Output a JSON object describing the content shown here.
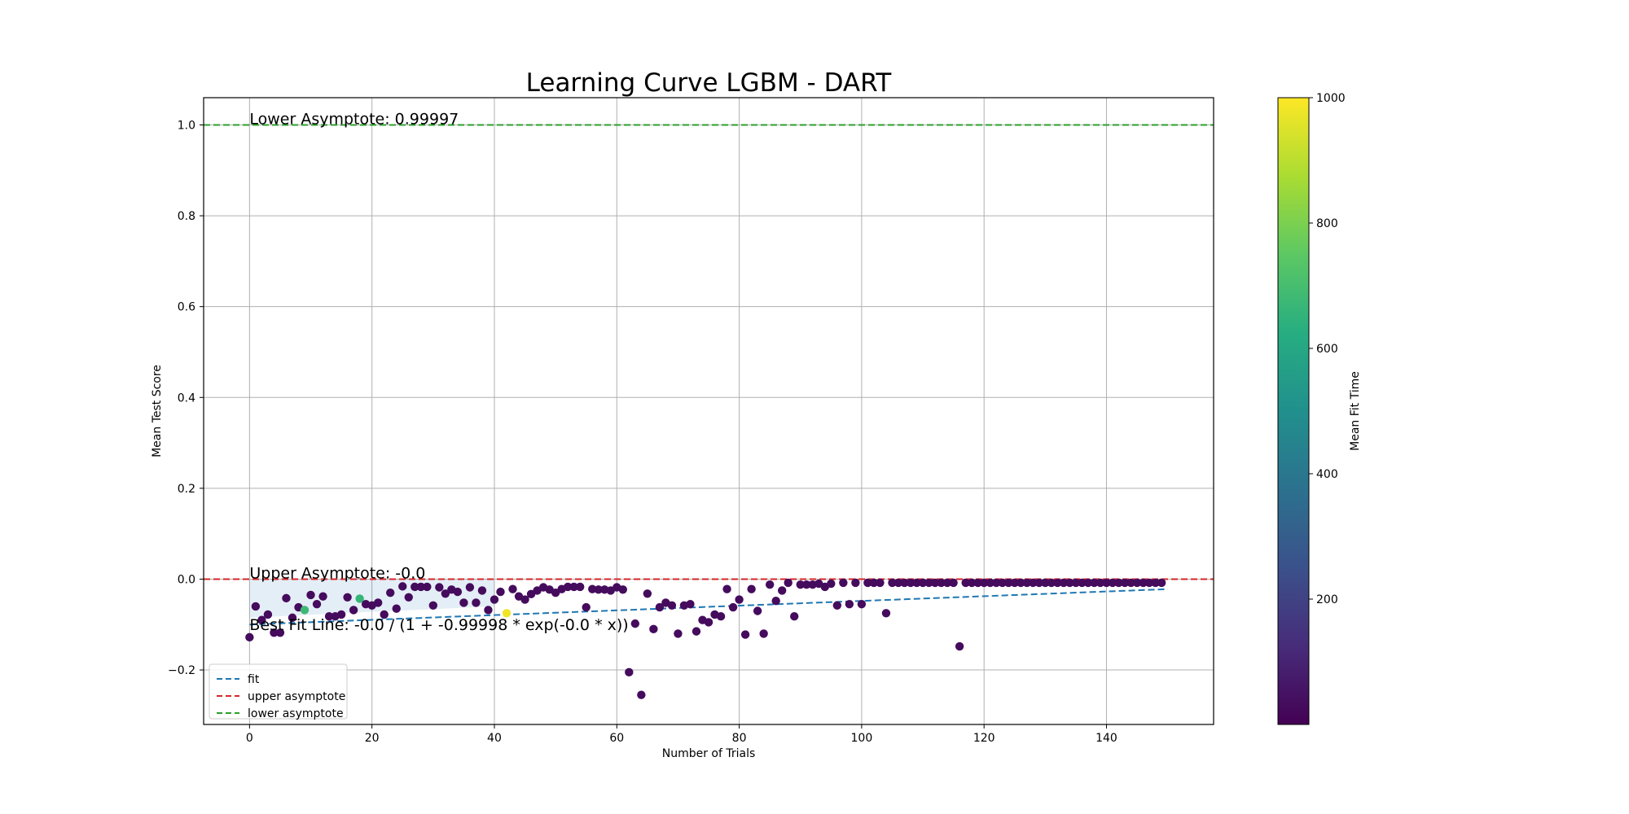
{
  "chart_data": {
    "type": "scatter",
    "title": "Learning Curve LGBM - DART",
    "xlabel": "Number of Trials",
    "ylabel": "Mean Test Score",
    "xlim": [
      -7.5,
      157.5
    ],
    "ylim": [
      -0.32,
      1.06
    ],
    "x_ticks": [
      0,
      20,
      40,
      60,
      80,
      100,
      120,
      140
    ],
    "y_ticks": [
      -0.2,
      0.0,
      0.2,
      0.4,
      0.6,
      0.8,
      1.0
    ],
    "x_tick_labels": [
      "0",
      "20",
      "40",
      "60",
      "80",
      "100",
      "120",
      "140"
    ],
    "y_tick_labels": [
      "−0.2",
      "0.0",
      "0.2",
      "0.4",
      "0.6",
      "0.8",
      "1.0"
    ],
    "grid": true,
    "annotations": {
      "lower_asymptote": "Lower Asymptote: 0.99997",
      "upper_asymptote": "Upper Asymptote: -0.0",
      "best_fit": "Best Fit Line: -0.0 / (1 + -0.99998 * exp(-0.0 * x))"
    },
    "legend": {
      "placement": "lower-left",
      "entries": [
        {
          "label": "fit",
          "color": "#1f77b4"
        },
        {
          "label": "upper asymptote",
          "color": "#d62728"
        },
        {
          "label": "lower asymptote",
          "color": "#2ca02c"
        }
      ]
    },
    "colorbar": {
      "label": "Mean Fit Time",
      "min": 0,
      "max": 1000,
      "ticks": [
        200,
        400,
        600,
        800,
        1000
      ],
      "tick_labels": [
        "200",
        "400",
        "600",
        "800",
        "1000"
      ],
      "colormap": [
        "#440154",
        "#472c7a",
        "#3b518b",
        "#2c718e",
        "#21908d",
        "#27ad81",
        "#5cc863",
        "#aadc32",
        "#fde725"
      ]
    },
    "reference_lines": {
      "upper_asymptote_y": 0.0,
      "lower_asymptote_y": 1.0,
      "upper_color": "#d62728",
      "lower_color": "#2ca02c"
    },
    "fit": {
      "x": [
        0,
        150
      ],
      "y": [
        -0.1,
        -0.022
      ],
      "color": "#1f77b4"
    },
    "band": {
      "x": [
        0,
        20,
        40
      ],
      "upper": [
        0.0,
        0.0,
        0.0
      ],
      "lower": [
        -0.085,
        -0.072,
        -0.06
      ],
      "color": "#1f77b4"
    },
    "points": {
      "x": [
        0,
        1,
        2,
        3,
        4,
        5,
        6,
        7,
        8,
        9,
        10,
        11,
        12,
        13,
        14,
        15,
        16,
        17,
        18,
        19,
        20,
        21,
        22,
        23,
        24,
        25,
        26,
        27,
        28,
        29,
        30,
        31,
        32,
        33,
        34,
        35,
        36,
        37,
        38,
        39,
        40,
        41,
        42,
        43,
        44,
        45,
        46,
        47,
        48,
        49,
        50,
        51,
        52,
        53,
        54,
        55,
        56,
        57,
        58,
        59,
        60,
        61,
        62,
        63,
        64,
        65,
        66,
        67,
        68,
        69,
        70,
        71,
        72,
        73,
        74,
        75,
        76,
        77,
        78,
        79,
        80,
        81,
        82,
        83,
        84,
        85,
        86,
        87,
        88,
        89,
        90,
        91,
        92,
        93,
        94,
        95,
        96,
        97,
        98,
        99,
        100,
        101,
        102,
        103,
        104,
        105,
        106,
        107,
        108,
        109,
        110,
        111,
        112,
        113,
        114,
        115,
        116,
        117,
        118,
        119,
        120,
        121,
        122,
        123,
        124,
        125,
        126,
        127,
        128,
        129,
        130,
        131,
        132,
        133,
        134,
        135,
        136,
        137,
        138,
        139,
        140,
        141,
        142,
        143,
        144,
        145,
        146,
        147,
        148,
        149
      ],
      "y": [
        -0.128,
        -0.06,
        -0.09,
        -0.078,
        -0.118,
        -0.118,
        -0.042,
        -0.085,
        -0.062,
        -0.068,
        -0.035,
        -0.055,
        -0.038,
        -0.082,
        -0.082,
        -0.078,
        -0.04,
        -0.068,
        -0.043,
        -0.055,
        -0.058,
        -0.052,
        -0.078,
        -0.03,
        -0.065,
        -0.016,
        -0.04,
        -0.017,
        -0.017,
        -0.017,
        -0.058,
        -0.018,
        -0.032,
        -0.023,
        -0.028,
        -0.052,
        -0.018,
        -0.052,
        -0.025,
        -0.068,
        -0.045,
        -0.028,
        -0.075,
        -0.022,
        -0.038,
        -0.045,
        -0.033,
        -0.025,
        -0.018,
        -0.023,
        -0.03,
        -0.022,
        -0.017,
        -0.017,
        -0.017,
        -0.062,
        -0.022,
        -0.023,
        -0.023,
        -0.025,
        -0.018,
        -0.023,
        -0.205,
        -0.098,
        -0.255,
        -0.032,
        -0.11,
        -0.062,
        -0.052,
        -0.058,
        -0.12,
        -0.058,
        -0.055,
        -0.115,
        -0.09,
        -0.095,
        -0.078,
        -0.082,
        -0.022,
        -0.062,
        -0.045,
        -0.122,
        -0.022,
        -0.07,
        -0.12,
        -0.012,
        -0.048,
        -0.025,
        -0.008,
        -0.082,
        -0.012,
        -0.012,
        -0.012,
        -0.01,
        -0.017,
        -0.01,
        -0.058,
        -0.008,
        -0.055,
        -0.008,
        -0.055,
        -0.008,
        -0.008,
        -0.008,
        -0.075,
        -0.008,
        -0.008,
        -0.008,
        -0.008,
        -0.008,
        -0.008,
        -0.008,
        -0.008,
        -0.008,
        -0.008,
        -0.008,
        -0.148,
        -0.008,
        -0.008,
        -0.008,
        -0.008,
        -0.008,
        -0.008,
        -0.008,
        -0.008,
        -0.008,
        -0.008,
        -0.008,
        -0.008,
        -0.008,
        -0.008,
        -0.008,
        -0.008,
        -0.008,
        -0.008,
        -0.008,
        -0.008,
        -0.008,
        -0.008,
        -0.008,
        -0.008,
        -0.008,
        -0.008,
        -0.008,
        -0.008,
        -0.008,
        -0.008,
        -0.008,
        -0.008,
        -0.008
      ],
      "fit_time": [
        30,
        30,
        30,
        30,
        30,
        30,
        30,
        30,
        30,
        680,
        30,
        30,
        30,
        30,
        30,
        30,
        30,
        30,
        660,
        30,
        30,
        30,
        30,
        30,
        30,
        30,
        30,
        30,
        30,
        30,
        30,
        30,
        30,
        30,
        30,
        30,
        30,
        30,
        30,
        30,
        30,
        30,
        980,
        30,
        30,
        30,
        30,
        30,
        30,
        30,
        30,
        30,
        30,
        30,
        30,
        30,
        30,
        30,
        30,
        30,
        30,
        30,
        30,
        30,
        30,
        30,
        30,
        30,
        30,
        30,
        30,
        30,
        30,
        30,
        30,
        30,
        30,
        30,
        30,
        30,
        30,
        30,
        30,
        30,
        30,
        30,
        30,
        30,
        30,
        30,
        30,
        30,
        30,
        30,
        30,
        30,
        30,
        30,
        30,
        30,
        30,
        30,
        30,
        30,
        30,
        30,
        30,
        30,
        30,
        30,
        30,
        30,
        30,
        30,
        30,
        30,
        30,
        30,
        30,
        30,
        30,
        30,
        30,
        30,
        30,
        30,
        30,
        30,
        30,
        30,
        30,
        30,
        30,
        30,
        30,
        30,
        30,
        30,
        30,
        30,
        30,
        30,
        30,
        30,
        30,
        30,
        30,
        30,
        30,
        30
      ]
    }
  }
}
